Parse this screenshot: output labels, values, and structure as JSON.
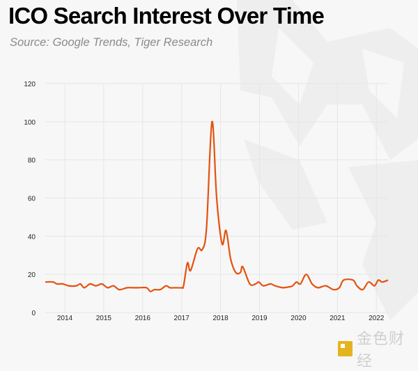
{
  "header": {
    "title": "ICO Search Interest Over Time",
    "subtitle": "Source: Google Trends, Tiger Research"
  },
  "watermark": {
    "text": "金色财经"
  },
  "colors": {
    "line": "#e4520f",
    "grid": "#e6e6e6",
    "axis_text": "#222222"
  },
  "chart_data": {
    "type": "line",
    "title": "ICO Search Interest Over Time",
    "xlabel": "",
    "ylabel": "",
    "xlim": [
      2013.5,
      2022.3
    ],
    "ylim": [
      0,
      120
    ],
    "yticks": [
      0,
      20,
      40,
      60,
      80,
      100,
      120
    ],
    "xticks": [
      2014,
      2015,
      2016,
      2017,
      2018,
      2019,
      2020,
      2021,
      2022
    ],
    "xtick_labels": [
      "2014",
      "2015",
      "2016",
      "2017",
      "2018",
      "2019",
      "2020",
      "2021",
      "2022"
    ],
    "grid": true,
    "legend": "none",
    "series": [
      {
        "name": "ICO",
        "x": [
          2013.5,
          2013.7,
          2013.8,
          2013.95,
          2014.1,
          2014.3,
          2014.4,
          2014.5,
          2014.65,
          2014.8,
          2014.95,
          2015.1,
          2015.25,
          2015.4,
          2015.6,
          2015.75,
          2015.9,
          2016.1,
          2016.2,
          2016.3,
          2016.45,
          2016.6,
          2016.7,
          2016.85,
          2017.0,
          2017.05,
          2017.15,
          2017.23,
          2017.41,
          2017.53,
          2017.64,
          2017.78,
          2017.9,
          2018.04,
          2018.14,
          2018.26,
          2018.39,
          2018.51,
          2018.57,
          2018.75,
          2018.9,
          2018.98,
          2019.1,
          2019.28,
          2019.4,
          2019.6,
          2019.77,
          2019.85,
          2019.95,
          2020.05,
          2020.2,
          2020.35,
          2020.5,
          2020.7,
          2020.9,
          2021.05,
          2021.16,
          2021.4,
          2021.5,
          2021.65,
          2021.8,
          2021.95,
          2022.05,
          2022.15,
          2022.3
        ],
        "y": [
          16,
          16,
          15,
          15,
          14,
          14,
          15,
          13,
          15,
          14,
          15,
          13,
          14,
          12,
          13,
          13,
          13,
          13,
          11,
          12,
          12,
          14,
          13,
          13,
          13,
          14,
          26,
          22,
          33.5,
          33,
          44.5,
          100,
          60,
          36,
          43,
          28,
          21,
          21,
          24,
          15,
          15,
          16,
          14,
          15,
          14,
          13,
          13.5,
          14,
          16,
          15,
          20,
          15,
          13,
          14,
          12,
          13,
          17,
          17,
          14,
          12,
          16,
          14,
          17,
          16,
          17
        ]
      }
    ]
  }
}
